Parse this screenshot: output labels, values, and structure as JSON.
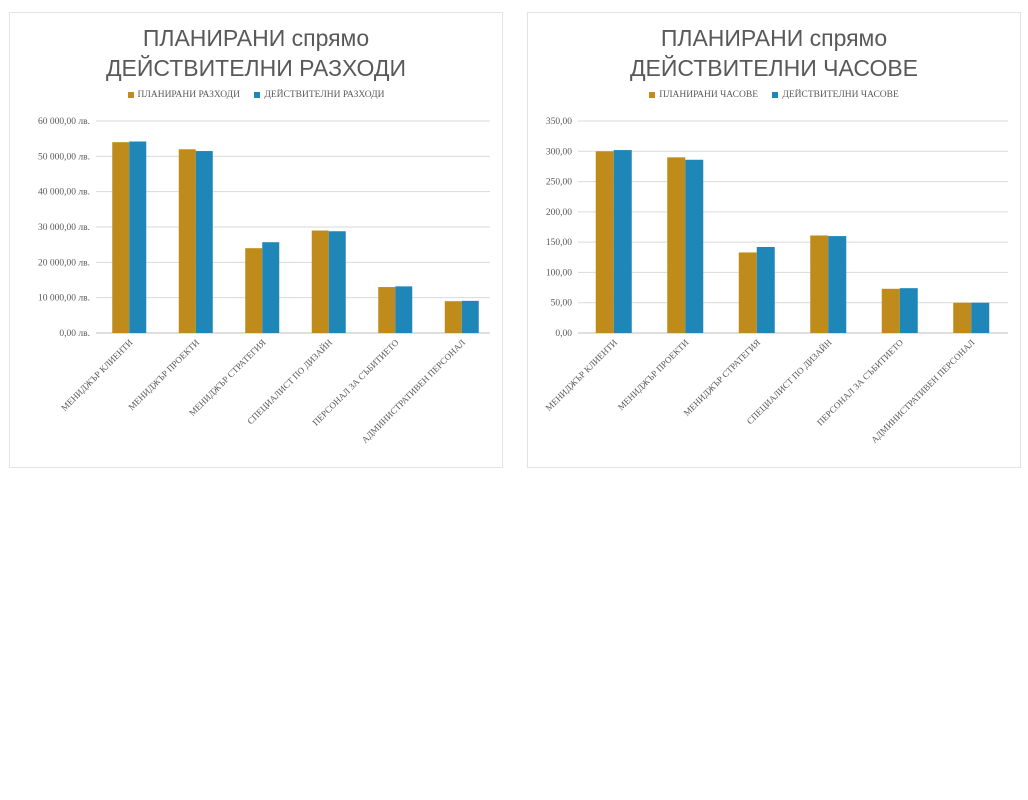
{
  "colors": {
    "planned": "#BF8C1C",
    "actual": "#1F86B8",
    "grid": "#D9D9D9",
    "text": "#595959"
  },
  "chart_data": [
    {
      "type": "bar",
      "title_line1": "ПЛАНИРАНИ спрямо",
      "title_line2": "ДЕЙСТВИТЕЛНИ РАЗХОДИ",
      "categories": [
        "МЕНИДЖЪР КЛИЕНТИ",
        "МЕНИДЖЪР ПРОЕКТИ",
        "МЕНИДЖЪР СТРАТЕГИЯ",
        "СПЕЦИАЛИСТ ПО ДИЗАЙН",
        "ПЕРСОНАЛ ЗА СЪБИТИЕТО",
        "АДМИНИСТРАТИВЕН ПЕРСОНАЛ"
      ],
      "series": [
        {
          "name": "ПЛАНИРАНИ РАЗХОДИ",
          "values": [
            54000,
            52000,
            24000,
            29000,
            13000,
            9000
          ]
        },
        {
          "name": "ДЕЙСТВИТЕЛНИ РАЗХОДИ",
          "values": [
            54200,
            51500,
            25700,
            28800,
            13200,
            9100
          ]
        }
      ],
      "ylim": [
        0,
        60000
      ],
      "yticks": [
        0,
        10000,
        20000,
        30000,
        40000,
        50000,
        60000
      ],
      "ytick_labels": [
        "0,00 лв.",
        "10 000,00 лв.",
        "20 000,00 лв.",
        "30 000,00 лв.",
        "40 000,00 лв.",
        "50 000,00 лв.",
        "60 000,00 лв."
      ],
      "grid": true,
      "legend_position": "top"
    },
    {
      "type": "bar",
      "title_line1": "ПЛАНИРАНИ спрямо",
      "title_line2": "ДЕЙСТВИТЕЛНИ ЧАСОВЕ",
      "categories": [
        "МЕНИДЖЪР КЛИЕНТИ",
        "МЕНИДЖЪР ПРОЕКТИ",
        "МЕНИДЖЪР СТРАТЕГИЯ",
        "СПЕЦИАЛИСТ ПО ДИЗАЙН",
        "ПЕРСОНАЛ ЗА СЪБИТИЕТО",
        "АДМИНИСТРАТИВЕН ПЕРСОНАЛ"
      ],
      "series": [
        {
          "name": "ПЛАНИРАНИ ЧАСОВЕ",
          "values": [
            300,
            290,
            133,
            161,
            73,
            50
          ]
        },
        {
          "name": "ДЕЙСТВИТЕЛНИ ЧАСОВЕ",
          "values": [
            302,
            286,
            142,
            160,
            74,
            50
          ]
        }
      ],
      "ylim": [
        0,
        350
      ],
      "yticks": [
        0,
        50,
        100,
        150,
        200,
        250,
        300,
        350
      ],
      "ytick_labels": [
        "0,00",
        "50,00",
        "100,00",
        "150,00",
        "200,00",
        "250,00",
        "300,00",
        "350,00"
      ],
      "grid": true,
      "legend_position": "top"
    }
  ]
}
